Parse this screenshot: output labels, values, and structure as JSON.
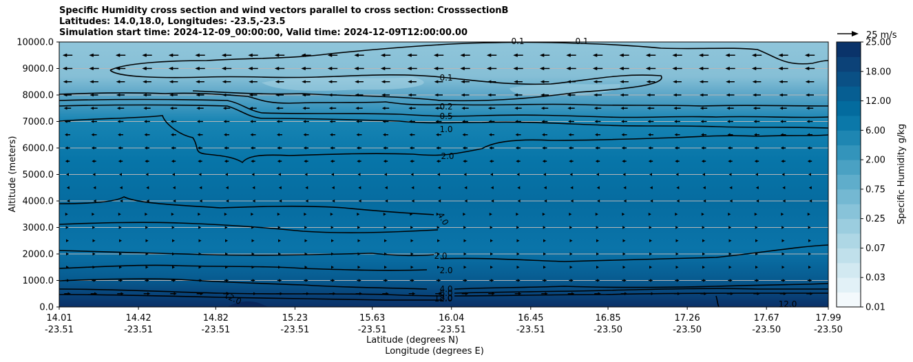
{
  "chart_data": {
    "type": "heatmap",
    "title_lines": [
      "Specific Humidity cross section and wind vectors parallel to cross section: CrosssectionB",
      "Latitudes: 14.0,18.0, Longitudes: -23.5,-23.5",
      "Simulation start time: 2024-12-09_00:00:00, Valid time: 2024-12-09T12:00:00.00"
    ],
    "xlabel_lat": "Latitude (degrees N)",
    "xlabel_lon": "Longitude (degrees E)",
    "ylabel": "Altitude (meters)",
    "ylim": [
      0,
      10000
    ],
    "yticks": [
      0,
      1000,
      2000,
      3000,
      4000,
      5000,
      6000,
      7000,
      8000,
      9000,
      10000
    ],
    "ytick_labels": [
      "0.0",
      "1000.0",
      "2000.0",
      "3000.0",
      "4000.0",
      "5000.0",
      "6000.0",
      "7000.0",
      "8000.0",
      "9000.0",
      "10000.0"
    ],
    "xticks_lat": [
      "14.01",
      "14.42",
      "14.82",
      "15.23",
      "15.63",
      "16.04",
      "16.45",
      "16.85",
      "17.26",
      "17.67",
      "17.99"
    ],
    "xticks_lon": [
      "-23.51",
      "-23.51",
      "-23.51",
      "-23.51",
      "-23.51",
      "-23.51",
      "-23.51",
      "-23.50",
      "-23.50",
      "-23.50",
      "-23.50"
    ],
    "grid": "horizontal",
    "colorbar": {
      "label": "Specific Humidity g/kg",
      "levels": [
        0.01,
        0.02,
        0.03,
        0.05,
        0.07,
        0.1,
        0.25,
        0.5,
        0.75,
        1.0,
        2.0,
        4.0,
        6.0,
        9.0,
        12.0,
        15.0,
        18.0,
        21.0,
        25.0
      ],
      "tick_labels": [
        "0.01",
        "0.03",
        "0.07",
        "0.25",
        "0.75",
        "2.00",
        "6.00",
        "12.00",
        "18.00",
        "25.00"
      ],
      "colors": [
        "#f3f9fc",
        "#e2f1f7",
        "#d2e9f1",
        "#c0e0eb",
        "#aed7e5",
        "#9bcddf",
        "#88c3d9",
        "#74b8d2",
        "#5fadcb",
        "#4aa1c3",
        "#3394bb",
        "#1e86b2",
        "#0b78a9",
        "#036b9e",
        "#065e92",
        "#0a5085",
        "#0c4278",
        "#0a336a"
      ],
      "scale": "categorical"
    },
    "contours": [
      {
        "level": "0.1",
        "label": "0.1"
      },
      {
        "level": "0.2",
        "label": "0.2"
      },
      {
        "level": "0.5",
        "label": "0.5"
      },
      {
        "level": "1.0",
        "label": "1.0"
      },
      {
        "level": "2.0",
        "label": "2.0"
      },
      {
        "level": "4.0",
        "label": "4.0"
      },
      {
        "level": "6.0",
        "label": "6.0"
      },
      {
        "level": "8.0",
        "label": "8.0"
      },
      {
        "level": "12.0",
        "label": "12.0"
      }
    ],
    "quiver_key": {
      "label": "25 m/s",
      "value": 25
    },
    "wind_u_profile": [
      {
        "z": 9500,
        "u": -9
      },
      {
        "z": 9000,
        "u": -9
      },
      {
        "z": 8500,
        "u": -8
      },
      {
        "z": 8000,
        "u": -7.5
      },
      {
        "z": 7500,
        "u": -6.5
      },
      {
        "z": 7000,
        "u": -5.5
      },
      {
        "z": 6500,
        "u": -5
      },
      {
        "z": 6000,
        "u": -4.5
      },
      {
        "z": 5500,
        "u": -4
      },
      {
        "z": 5000,
        "u": -2.5
      },
      {
        "z": 4500,
        "u": -1.5
      },
      {
        "z": 4000,
        "u": -1
      },
      {
        "z": 3500,
        "u": 1
      },
      {
        "z": 3000,
        "u": 2
      },
      {
        "z": 2500,
        "u": 2.5
      },
      {
        "z": 2000,
        "u": 2.5
      },
      {
        "z": 1500,
        "u": 2.5
      },
      {
        "z": 1000,
        "u": 4
      },
      {
        "z": 500,
        "u": 6
      }
    ]
  }
}
